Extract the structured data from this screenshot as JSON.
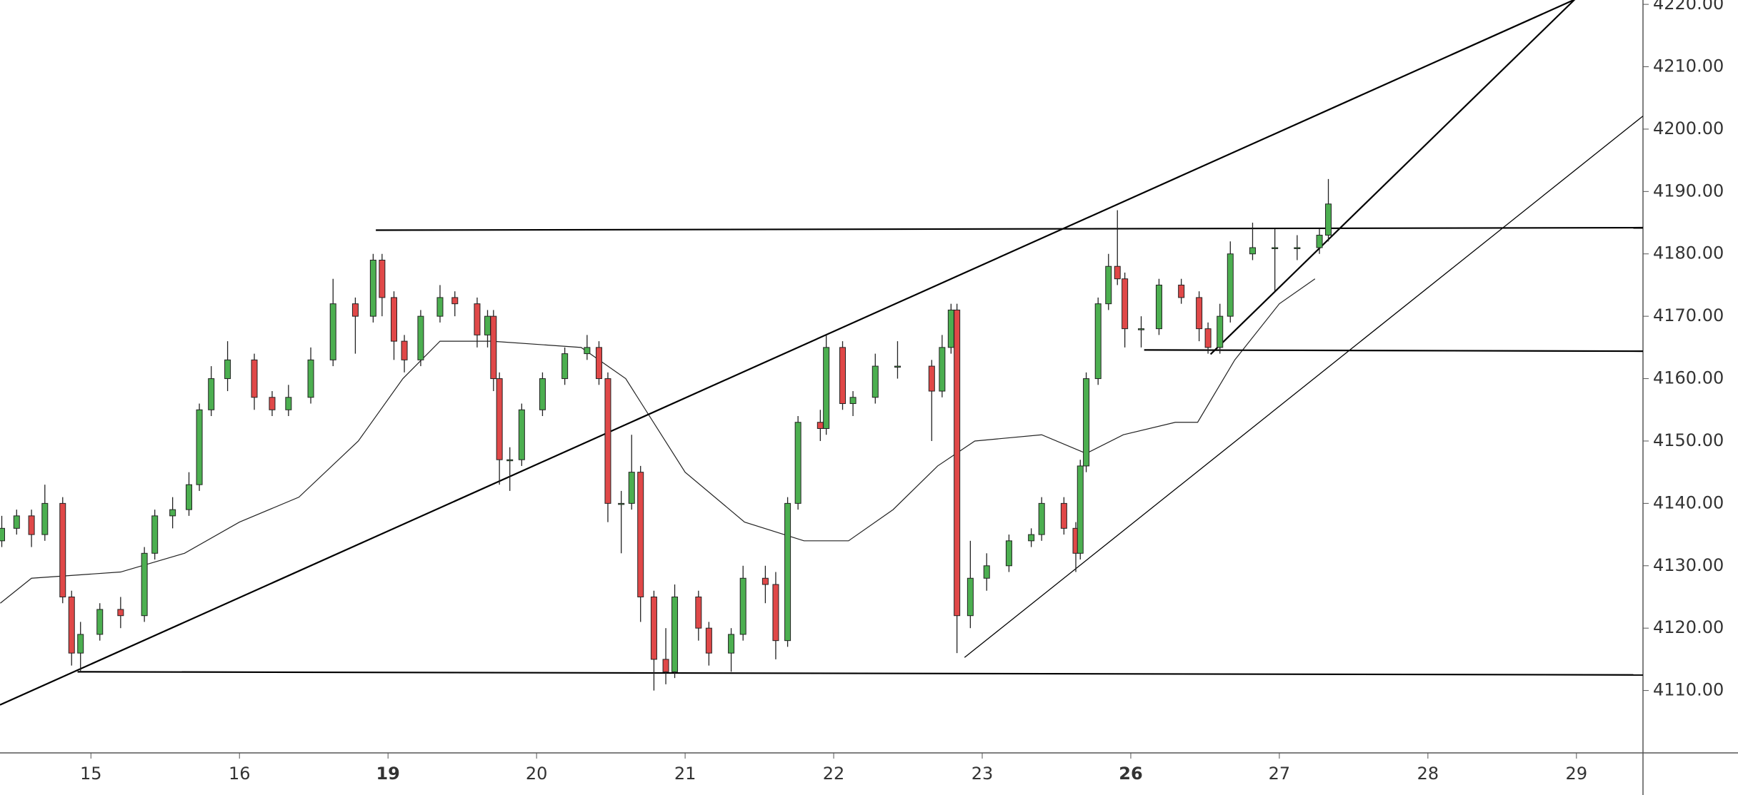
{
  "chart_data": {
    "type": "candlestick",
    "x": [
      -0.6,
      -0.5,
      -0.4,
      -0.31,
      -0.19,
      -0.13,
      -0.07,
      0.06,
      0.2,
      0.36,
      0.43,
      0.55,
      0.66,
      0.73,
      0.81,
      0.92,
      1.1,
      1.22,
      1.33,
      1.48,
      1.63,
      1.78,
      1.9,
      1.96,
      2.04,
      2.11,
      2.22,
      2.35,
      2.45,
      2.6,
      2.67,
      2.71,
      2.75,
      2.82,
      2.9,
      3.04,
      3.19,
      3.34,
      3.42,
      3.48,
      3.57,
      3.64,
      3.7,
      3.79,
      3.87,
      3.93,
      4.09,
      4.16,
      4.31,
      4.39,
      4.54,
      4.61,
      4.69,
      4.76,
      4.91,
      4.95,
      5.06,
      5.13,
      5.28,
      5.43,
      5.66,
      5.73,
      5.79,
      5.83,
      5.92,
      6.03,
      6.18,
      6.33,
      6.4,
      6.55,
      6.63,
      6.66,
      6.7,
      6.78,
      6.85,
      6.91,
      6.96,
      7.07,
      7.19,
      7.34,
      7.46,
      7.52,
      7.6,
      7.67,
      7.82,
      7.97,
      8.12,
      8.27,
      8.33
    ],
    "open": [
      4134,
      4136,
      4138,
      4135,
      4140,
      4125,
      4116,
      4119,
      4123,
      4122,
      4132,
      4138,
      4139,
      4143,
      4155,
      4160,
      4163,
      4157,
      4155,
      4157,
      4163,
      4172,
      4170,
      4179,
      4173,
      4166,
      4163,
      4170,
      4173,
      4172,
      4167,
      4170,
      4160,
      4147,
      4147,
      4155,
      4160,
      4164,
      4165,
      4160,
      4140,
      4140,
      4145,
      4125,
      4115,
      4113,
      4125,
      4120,
      4116,
      4119,
      4128,
      4127,
      4118,
      4140,
      4153,
      4152,
      4165,
      4156,
      4157,
      4162,
      4162,
      4158,
      4165,
      4171,
      4122,
      4128,
      4130,
      4134,
      4135,
      4140,
      4136,
      4132,
      4146,
      4160,
      4172,
      4178,
      4176,
      4168,
      4168,
      4175,
      4173,
      4168,
      4165,
      4170,
      4180,
      4181,
      4181,
      4181,
      4183
    ],
    "high": [
      4138,
      4139,
      4139,
      4143,
      4141,
      4126,
      4121,
      4124,
      4125,
      4133,
      4139,
      4141,
      4145,
      4156,
      4162,
      4166,
      4164,
      4158,
      4159,
      4165,
      4176,
      4173,
      4180,
      4180,
      4174,
      4167,
      4171,
      4175,
      4174,
      4173,
      4171,
      4171,
      4161,
      4149,
      4156,
      4161,
      4165,
      4167,
      4166,
      4161,
      4142,
      4151,
      4146,
      4126,
      4120,
      4127,
      4126,
      4121,
      4120,
      4130,
      4130,
      4129,
      4141,
      4154,
      4155,
      4167,
      4166,
      4158,
      4164,
      4166,
      4163,
      4167,
      4172,
      4172,
      4134,
      4132,
      4135,
      4136,
      4141,
      4141,
      4137,
      4147,
      4161,
      4173,
      4180,
      4187,
      4177,
      4170,
      4176,
      4176,
      4174,
      4169,
      4172,
      4182,
      4185,
      4184,
      4183,
      4184,
      4192
    ],
    "low": [
      4133,
      4135,
      4133,
      4134,
      4124,
      4114,
      4113,
      4118,
      4120,
      4121,
      4131,
      4136,
      4138,
      4142,
      4154,
      4158,
      4155,
      4154,
      4154,
      4156,
      4162,
      4164,
      4169,
      4170,
      4163,
      4161,
      4162,
      4169,
      4170,
      4165,
      4165,
      4158,
      4143,
      4142,
      4146,
      4154,
      4159,
      4163,
      4159,
      4137,
      4132,
      4139,
      4121,
      4110,
      4111,
      4112,
      4118,
      4114,
      4113,
      4118,
      4124,
      4115,
      4117,
      4139,
      4150,
      4151,
      4155,
      4154,
      4156,
      4160,
      4150,
      4157,
      4164,
      4116,
      4120,
      4126,
      4129,
      4133,
      4134,
      4135,
      4129,
      4131,
      4145,
      4159,
      4171,
      4175,
      4165,
      4165,
      4167,
      4172,
      4166,
      4164,
      4164,
      4169,
      4179,
      4174,
      4179,
      4180,
      4182
    ],
    "close": [
      4136,
      4138,
      4135,
      4140,
      4125,
      4116,
      4119,
      4123,
      4122,
      4132,
      4138,
      4139,
      4143,
      4155,
      4160,
      4163,
      4157,
      4155,
      4157,
      4163,
      4172,
      4170,
      4179,
      4173,
      4166,
      4163,
      4170,
      4173,
      4172,
      4167,
      4170,
      4160,
      4147,
      4147,
      4155,
      4160,
      4164,
      4165,
      4160,
      4140,
      4140,
      4145,
      4125,
      4115,
      4113,
      4125,
      4120,
      4116,
      4119,
      4128,
      4127,
      4118,
      4140,
      4153,
      4152,
      4165,
      4156,
      4157,
      4162,
      4162,
      4158,
      4165,
      4171,
      4122,
      4128,
      4130,
      4134,
      4135,
      4140,
      4136,
      4132,
      4146,
      4160,
      4172,
      4178,
      4176,
      4168,
      4168,
      4175,
      4173,
      4168,
      4165,
      4170,
      4180,
      4181,
      4181,
      4181,
      4183,
      4188
    ],
    "up_color": "#4caf50",
    "down_color": "#e04848",
    "xlim": [
      -0.612,
      10.448
    ],
    "xticks": [
      {
        "value": 0,
        "label": "15"
      },
      {
        "value": 1,
        "label": "16"
      },
      {
        "value": 2,
        "label": "19"
      },
      {
        "value": 3,
        "label": "20"
      },
      {
        "value": 4,
        "label": "21"
      },
      {
        "value": 5,
        "label": "22"
      },
      {
        "value": 6,
        "label": "23"
      },
      {
        "value": 7,
        "label": "26"
      },
      {
        "value": 8,
        "label": "27"
      },
      {
        "value": 9,
        "label": "28"
      },
      {
        "value": 10,
        "label": "29"
      }
    ],
    "ylim": [
      4100,
      4220.7
    ],
    "yticks": [
      {
        "value": 4110,
        "label": "4110.00"
      },
      {
        "value": 4120,
        "label": "4120.00"
      },
      {
        "value": 4130,
        "label": "4130.00"
      },
      {
        "value": 4140,
        "label": "4140.00"
      },
      {
        "value": 4150,
        "label": "4150.00"
      },
      {
        "value": 4160,
        "label": "4160.00"
      },
      {
        "value": 4170,
        "label": "4170.00"
      },
      {
        "value": 4180,
        "label": "4180.00"
      },
      {
        "value": 4190,
        "label": "4190.00"
      },
      {
        "value": 4200,
        "label": "4200.00"
      },
      {
        "value": 4210,
        "label": "4210.00"
      },
      {
        "value": 4220,
        "label": "4220.00"
      }
    ],
    "moving_average": {
      "color": "#222222",
      "x": [
        -0.61,
        -0.4,
        0.2,
        0.63,
        1.0,
        1.4,
        1.8,
        2.1,
        2.35,
        2.7,
        3.3,
        3.6,
        4.0,
        4.4,
        4.8,
        5.1,
        5.4,
        5.7,
        5.95,
        6.4,
        6.7,
        6.95,
        7.3,
        7.45,
        7.7,
        8.0,
        8.24
      ],
      "values": [
        4124,
        4128,
        4129,
        4132,
        4137,
        4141,
        4150,
        4160,
        4166,
        4166,
        4165,
        4160,
        4145,
        4137,
        4134,
        4134,
        4139,
        4146,
        4150,
        4151,
        4148,
        4151,
        4153,
        4153,
        4163,
        4172,
        4176
      ]
    },
    "trend_lines": [
      {
        "x": [
          -0.612,
          10.0
        ],
        "y": [
          4107.7,
          4220.9
        ],
        "color": "#000000"
      },
      {
        "x": [
          7.537,
          9.985
        ],
        "y": [
          4163.9,
          4220.7
        ],
        "color": "#000000"
      },
      {
        "x": [
          5.881,
          10.448
        ],
        "y": [
          4115.3,
          4202.1
        ],
        "color": "#000000"
      },
      {
        "x": [
          1.918,
          10.448
        ],
        "y": [
          4183.8,
          4184.2
        ],
        "color": "#000000"
      },
      {
        "x": [
          -0.09,
          10.448
        ],
        "y": [
          4113.0,
          4112.5
        ],
        "color": "#000000"
      },
      {
        "x": [
          7.09,
          10.448
        ],
        "y": [
          4164.6,
          4164.4
        ],
        "color": "#000000"
      }
    ]
  }
}
